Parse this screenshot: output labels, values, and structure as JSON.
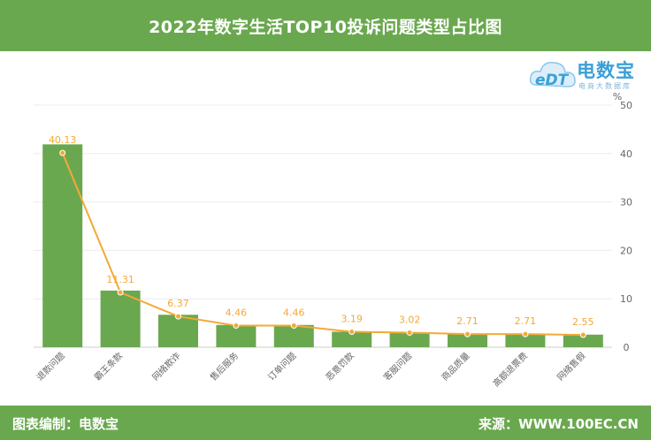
{
  "header": {
    "title": "2022年数字生活TOP10投诉问题类型占比图"
  },
  "logo": {
    "brand": "电数宝",
    "tagline": "电商大数据库",
    "mark": "eDT"
  },
  "footer": {
    "left_text": "图表编制：电数宝",
    "right_text": "来源：WWW.100EC.CN"
  },
  "colors": {
    "bar": "#6aa84f",
    "line": "#f4a935",
    "label": "#f4a935",
    "header_bg": "#6aa84f"
  },
  "chart_data": {
    "type": "bar",
    "categories": [
      "退款问题",
      "霸王条款",
      "网络欺诈",
      "售后服务",
      "订单问题",
      "恶意罚款",
      "客服问题",
      "商品质量",
      "高额退票费",
      "网络售假"
    ],
    "series": [
      {
        "type": "bar",
        "values": [
          41.9,
          11.7,
          6.7,
          4.6,
          4.6,
          3.2,
          3.1,
          2.8,
          2.8,
          2.6
        ]
      },
      {
        "type": "line",
        "values": [
          40.13,
          11.31,
          6.37,
          4.46,
          4.46,
          3.19,
          3.02,
          2.71,
          2.71,
          2.55
        ]
      }
    ],
    "data_labels": [
      "40.13",
      "11.31",
      "6.37",
      "4.46",
      "4.46",
      "3.19",
      "3.02",
      "2.71",
      "2.71",
      "2.55"
    ],
    "ylabel": "%",
    "ylim": [
      0,
      50
    ],
    "yticks": [
      "0",
      "10",
      "20",
      "30",
      "40",
      "50"
    ],
    "axis_side": "right",
    "grid": true,
    "legend": "none"
  }
}
